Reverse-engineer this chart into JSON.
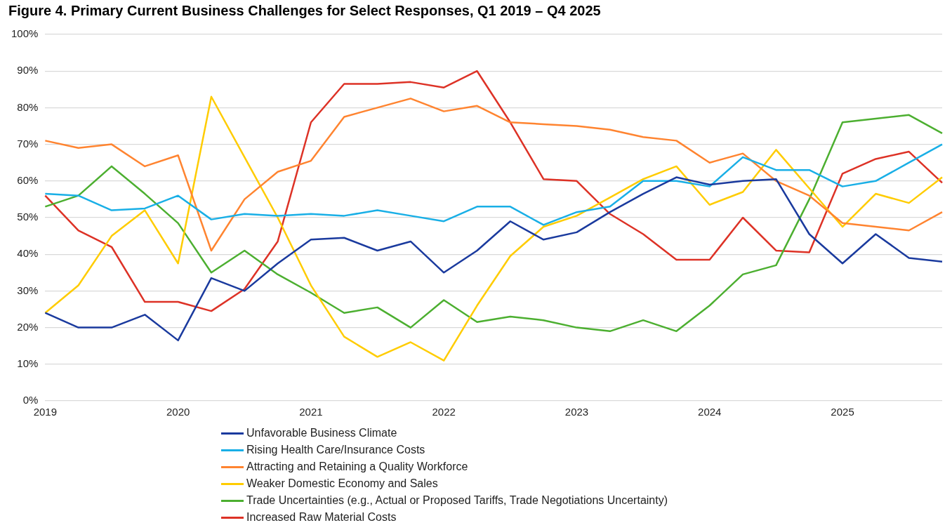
{
  "chart_data": {
    "type": "line",
    "title": "Figure 4. Primary Current Business Challenges for Select Responses, Q1 2019 – Q4 2025",
    "categories": [
      "2019",
      null,
      null,
      null,
      "2020",
      null,
      null,
      null,
      "2021",
      null,
      null,
      null,
      "2022",
      null,
      null,
      null,
      "2023",
      null,
      null,
      null,
      "2024",
      null,
      null,
      null,
      "2025",
      null,
      null,
      null
    ],
    "ylim": [
      0,
      100
    ],
    "yticks": [
      {
        "value": 0,
        "label": "0%"
      },
      {
        "value": 10,
        "label": "10%"
      },
      {
        "value": 20,
        "label": "20%"
      },
      {
        "value": 30,
        "label": "30%"
      },
      {
        "value": 40,
        "label": "40%"
      },
      {
        "value": 50,
        "label": "50%"
      },
      {
        "value": 60,
        "label": "60%"
      },
      {
        "value": 70,
        "label": "70%"
      },
      {
        "value": 80,
        "label": "80%"
      },
      {
        "value": 90,
        "label": "90%"
      },
      {
        "value": 100,
        "label": "100%"
      }
    ],
    "grid": "y",
    "legend": "bottom",
    "marker": "none",
    "line_style": "solid",
    "series": [
      {
        "name": "Unfavorable Business Climate",
        "color": "#1a3a9e",
        "values": [
          24,
          20,
          20,
          23.5,
          16.5,
          33.5,
          30,
          37.5,
          44,
          44.5,
          41,
          43.5,
          35,
          41,
          49,
          44,
          46,
          51.5,
          56.5,
          61,
          59,
          60,
          60.5,
          45.5,
          37.5,
          45.5,
          39,
          38
        ]
      },
      {
        "name": "Rising Health Care/Insurance Costs",
        "color": "#19afe6",
        "values": [
          56.5,
          56,
          52,
          52.5,
          56,
          49.5,
          51,
          50.5,
          51,
          50.5,
          52,
          50.5,
          49,
          53,
          53,
          48,
          51.5,
          53,
          60,
          60,
          58.5,
          66.5,
          63,
          63,
          58.5,
          60,
          65,
          70
        ]
      },
      {
        "name": "Attracting and Retaining a Quality Workforce",
        "color": "#ff8430",
        "values": [
          71,
          69,
          70,
          64,
          67,
          41,
          55,
          62.5,
          65.5,
          77.5,
          80,
          82.5,
          79,
          80.5,
          76,
          75.5,
          75,
          74,
          72,
          71,
          65,
          67.5,
          60,
          56,
          48.5,
          47.5,
          46.5,
          51.5
        ]
      },
      {
        "name": "Weaker Domestic Economy and Sales",
        "color": "#ffcc00",
        "values": [
          24,
          31.5,
          45,
          52,
          37.5,
          83,
          66.5,
          50,
          31.5,
          17.5,
          12,
          16,
          11,
          26,
          39.5,
          47.5,
          50.5,
          55.5,
          60.5,
          64,
          53.5,
          57,
          68.5,
          58,
          47.5,
          56.5,
          54,
          61
        ]
      },
      {
        "name": "Trade Uncertainties (e.g., Actual or Proposed Tariffs, Trade Negotiations Uncertainty)",
        "color": "#4caf30",
        "values": [
          53,
          56,
          64,
          56.5,
          48.5,
          35,
          41,
          34.5,
          29.5,
          24,
          25.5,
          20,
          27.5,
          21.5,
          23,
          22,
          20,
          19,
          22,
          19,
          26,
          34.5,
          37,
          55,
          76,
          77,
          78,
          73
        ]
      },
      {
        "name": "Increased Raw Material Costs",
        "color": "#dd3226",
        "values": [
          56,
          46.5,
          42,
          27,
          27,
          24.5,
          30.5,
          43.5,
          76,
          86.5,
          86.5,
          87,
          85.5,
          90,
          76,
          60.5,
          60,
          51,
          45.5,
          38.5,
          38.5,
          50,
          41,
          40.5,
          62,
          66,
          68,
          59.5
        ]
      }
    ]
  }
}
